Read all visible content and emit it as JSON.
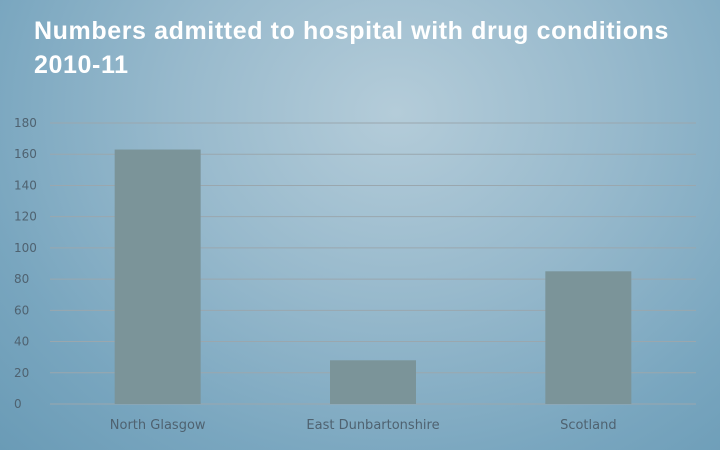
{
  "title": "Numbers admitted to hospital with drug conditions 2010-11",
  "chart_data": {
    "type": "bar",
    "categories": [
      "North Glasgow",
      "East Dunbartonshire",
      "Scotland"
    ],
    "values": [
      163,
      28,
      85
    ],
    "ylim": [
      0,
      180
    ],
    "yticks": [
      0,
      20,
      40,
      60,
      80,
      100,
      120,
      140,
      160,
      180
    ],
    "grid": true,
    "legend": "none",
    "bar_color": "#7b9499",
    "grid_color": "#9aa7ae"
  }
}
